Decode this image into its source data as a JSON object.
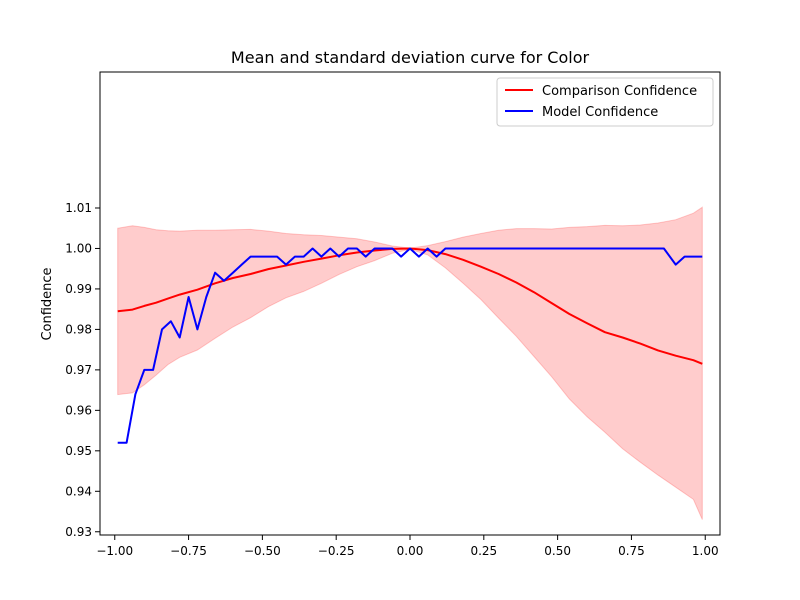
{
  "chart_data": {
    "type": "line",
    "title": "Mean and standard deviation curve for Color",
    "xlabel": "",
    "ylabel": "Confidence",
    "xlim": [
      -1.05,
      1.05
    ],
    "ylim": [
      0.9292,
      1.0436
    ],
    "xticks": [
      -1.0,
      -0.75,
      -0.5,
      -0.25,
      0.0,
      0.25,
      0.5,
      0.75,
      1.0
    ],
    "xtick_labels": [
      "−1.00",
      "−0.75",
      "−0.50",
      "−0.25",
      "0.00",
      "0.25",
      "0.50",
      "0.75",
      "1.00"
    ],
    "yticks": [
      0.93,
      0.94,
      0.95,
      0.96,
      0.97,
      0.98,
      0.99,
      1.0,
      1.01
    ],
    "ytick_labels": [
      "0.93",
      "0.94",
      "0.95",
      "0.96",
      "0.97",
      "0.98",
      "0.99",
      "1.00",
      "1.01"
    ],
    "grid": false,
    "legend_position": "top-right",
    "series": [
      {
        "name": "Comparison Confidence",
        "color": "#ff0000",
        "x": [
          -0.99,
          -0.94,
          -0.9,
          -0.86,
          -0.82,
          -0.78,
          -0.72,
          -0.66,
          -0.6,
          -0.54,
          -0.48,
          -0.42,
          -0.36,
          -0.3,
          -0.24,
          -0.18,
          -0.12,
          -0.06,
          0.0,
          0.06,
          0.12,
          0.18,
          0.24,
          0.3,
          0.36,
          0.42,
          0.48,
          0.54,
          0.6,
          0.66,
          0.72,
          0.78,
          0.84,
          0.9,
          0.96,
          0.99
        ],
        "y": [
          0.9845,
          0.9849,
          0.9858,
          0.9866,
          0.9876,
          0.9886,
          0.9898,
          0.9914,
          0.9927,
          0.9937,
          0.9949,
          0.9958,
          0.9967,
          0.9975,
          0.9983,
          0.999,
          0.9995,
          0.9999,
          1.0,
          0.9996,
          0.9986,
          0.9972,
          0.9955,
          0.9937,
          0.9916,
          0.9892,
          0.9865,
          0.9838,
          0.9815,
          0.9793,
          0.978,
          0.9765,
          0.9748,
          0.9735,
          0.9724,
          0.9715
        ]
      },
      {
        "name": "Model Confidence",
        "color": "#0000ff",
        "x": [
          -0.99,
          -0.96,
          -0.93,
          -0.9,
          -0.87,
          -0.84,
          -0.81,
          -0.78,
          -0.75,
          -0.72,
          -0.69,
          -0.66,
          -0.63,
          -0.6,
          -0.57,
          -0.54,
          -0.51,
          -0.48,
          -0.45,
          -0.42,
          -0.39,
          -0.36,
          -0.33,
          -0.3,
          -0.27,
          -0.24,
          -0.21,
          -0.18,
          -0.15,
          -0.12,
          -0.09,
          -0.06,
          -0.03,
          0.0,
          0.03,
          0.06,
          0.09,
          0.12,
          0.15,
          0.18,
          0.21,
          0.24,
          0.27,
          0.3,
          0.4,
          0.5,
          0.6,
          0.7,
          0.8,
          0.86,
          0.9,
          0.93,
          0.96,
          0.99
        ],
        "y": [
          0.952,
          0.952,
          0.964,
          0.97,
          0.97,
          0.98,
          0.982,
          0.978,
          0.988,
          0.98,
          0.988,
          0.994,
          0.992,
          0.994,
          0.996,
          0.998,
          0.998,
          0.998,
          0.998,
          0.996,
          0.998,
          0.998,
          1.0,
          0.998,
          1.0,
          0.998,
          1.0,
          1.0,
          0.998,
          1.0,
          1.0,
          1.0,
          0.998,
          1.0,
          0.998,
          1.0,
          0.998,
          1.0,
          1.0,
          1.0,
          1.0,
          1.0,
          1.0,
          1.0,
          1.0,
          1.0,
          1.0,
          1.0,
          1.0,
          1.0,
          0.996,
          0.998,
          0.998,
          0.998
        ]
      }
    ],
    "band": {
      "series": "Comparison Confidence",
      "color": "#ff0000",
      "opacity": 0.2,
      "x": [
        -0.99,
        -0.94,
        -0.9,
        -0.86,
        -0.82,
        -0.78,
        -0.72,
        -0.66,
        -0.6,
        -0.54,
        -0.48,
        -0.42,
        -0.36,
        -0.3,
        -0.24,
        -0.18,
        -0.12,
        -0.06,
        0.0,
        0.06,
        0.12,
        0.18,
        0.24,
        0.3,
        0.36,
        0.42,
        0.48,
        0.54,
        0.6,
        0.66,
        0.72,
        0.78,
        0.84,
        0.9,
        0.96,
        0.99
      ],
      "upper": [
        1.005,
        1.0056,
        1.0052,
        1.0046,
        1.0044,
        1.0043,
        1.0045,
        1.0045,
        1.0046,
        1.0047,
        1.0043,
        1.0037,
        1.0034,
        1.0032,
        1.0028,
        1.0024,
        1.0016,
        1.0006,
        1.0001,
        1.0007,
        1.0017,
        1.0028,
        1.0037,
        1.0045,
        1.0049,
        1.0049,
        1.0048,
        1.0052,
        1.0054,
        1.0057,
        1.0056,
        1.0058,
        1.0063,
        1.0071,
        1.0087,
        1.0102
      ],
      "lower": [
        0.9639,
        0.9643,
        0.9663,
        0.9687,
        0.9713,
        0.9731,
        0.9749,
        0.9778,
        0.9806,
        0.9829,
        0.9856,
        0.9878,
        0.9894,
        0.9914,
        0.9936,
        0.9955,
        0.997,
        0.9988,
        0.9998,
        0.9984,
        0.9952,
        0.9914,
        0.9874,
        0.9828,
        0.9783,
        0.9733,
        0.9683,
        0.9628,
        0.9584,
        0.9546,
        0.9505,
        0.9472,
        0.944,
        0.941,
        0.938,
        0.933
      ]
    }
  }
}
